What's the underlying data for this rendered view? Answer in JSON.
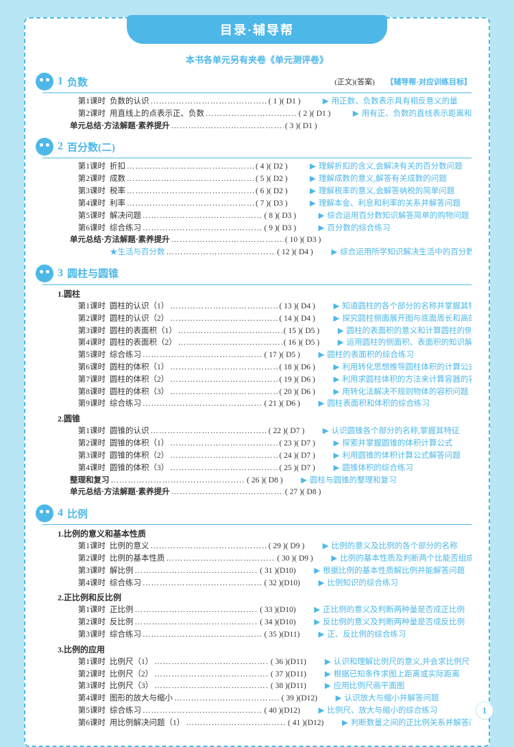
{
  "title": "目录·辅导帮",
  "subtitle": "本书各单元另有夹卷《单元测评卷》",
  "col_left": "(正文)(答案)",
  "col_right": "【辅导帮·对应训练目标】",
  "page_num": "1",
  "chapters": [
    {
      "num": "1",
      "title": "负数",
      "rows": [
        {
          "lesson": "第1课时",
          "topic": "负数的认识",
          "pg": "( 1 )( D1 )",
          "goal": "用正数、负数表示具有相反意义的量"
        },
        {
          "lesson": "第2课时",
          "topic": "用直线上的点表示正、负数",
          "pg": "( 2 )( D1 )",
          "goal": "用有正、负数的直线表示距离和相反的方向"
        },
        {
          "summary": true,
          "topic": "单元总结·方法解题·素养提升",
          "pg": "( 3 )( D1 )"
        }
      ]
    },
    {
      "num": "2",
      "title": "百分数(二)",
      "rows": [
        {
          "lesson": "第1课时",
          "topic": "折扣",
          "pg": "( 4 )( D2 )",
          "goal": "理解折扣的含义,会解决有关的百分数问题"
        },
        {
          "lesson": "第2课时",
          "topic": "成数",
          "pg": "( 5 )( D2 )",
          "goal": "理解成数的意义,解答有关成数的问题"
        },
        {
          "lesson": "第3课时",
          "topic": "税率",
          "pg": "( 6 )( D2 )",
          "goal": "理解税率的意义,会解答纳税的简单问题"
        },
        {
          "lesson": "第4课时",
          "topic": "利率",
          "pg": "( 7 )( D3 )",
          "goal": "理解本金、利息和利率的关系并解答问题"
        },
        {
          "lesson": "第5课时",
          "topic": "解决问题",
          "pg": "( 8 )( D3 )",
          "goal": "综合运用百分数知识解答简单的购物问题"
        },
        {
          "lesson": "第6课时",
          "topic": "综合练习",
          "pg": "( 9 )( D3 )",
          "goal": "百分数的综合练习"
        },
        {
          "summary": true,
          "topic": "单元总结·方法解题·素养提升",
          "pg": "( 10 )( D3 )"
        },
        {
          "star": true,
          "lesson": "",
          "topic": "★生活与百分数",
          "pg": "( 12 )( D4 )",
          "goal": "综合运用所学知识解决生活中的百分数问题"
        }
      ]
    },
    {
      "num": "3",
      "title": "圆柱与圆锥",
      "subs": [
        {
          "title": "1.圆柱",
          "rows": [
            {
              "lesson": "第1课时",
              "topic": "圆柱的认识（1）",
              "pg": "( 13 )( D4 )",
              "goal": "知道圆柱的各个部分的名称并掌握其特征"
            },
            {
              "lesson": "第2课时",
              "topic": "圆柱的认识（2）",
              "pg": "( 14 )( D4 )",
              "goal": "探究圆柱侧面展开图与底面周长和高的关系"
            },
            {
              "lesson": "第3课时",
              "topic": "圆柱的表面积（1）",
              "pg": "( 15 )( D5 )",
              "goal": "圆柱的表面积的意义和计算圆柱的侧面积"
            },
            {
              "lesson": "第4课时",
              "topic": "圆柱的表面积（2）",
              "pg": "( 16 )( D5 )",
              "goal": "运用圆柱的侧面积、表面积的知识解答问题"
            },
            {
              "lesson": "第5课时",
              "topic": "综合练习",
              "pg": "( 17 )( D5 )",
              "goal": "圆柱的表面积的综合练习"
            },
            {
              "lesson": "第6课时",
              "topic": "圆柱的体积（1）",
              "pg": "( 18 )( D6 )",
              "goal": "利用转化思想推导圆柱体积的计算公式"
            },
            {
              "lesson": "第7课时",
              "topic": "圆柱的体积（2）",
              "pg": "( 19 )( D6 )",
              "goal": "利用求圆柱体积的方法来计算容器的容积"
            },
            {
              "lesson": "第8课时",
              "topic": "圆柱的体积（3）",
              "pg": "( 20 )( D6 )",
              "goal": "用转化法解决不规则物体的容积问题"
            },
            {
              "lesson": "第9课时",
              "topic": "综合练习",
              "pg": "( 21 )( D6 )",
              "goal": "圆柱表面积和体积的综合练习"
            }
          ]
        },
        {
          "title": "2.圆锥",
          "rows": [
            {
              "lesson": "第1课时",
              "topic": "圆锥的认识",
              "pg": "( 22 )( D7 )",
              "goal": "认识圆锥各个部分的名称,掌握其特征"
            },
            {
              "lesson": "第2课时",
              "topic": "圆锥的体积（1）",
              "pg": "( 23 )( D7 )",
              "goal": "探索并掌握圆锥的体积计算公式"
            },
            {
              "lesson": "第3课时",
              "topic": "圆锥的体积（2）",
              "pg": "( 24 )( D7 )",
              "goal": "利用圆锥的体积计算公式解答问题"
            },
            {
              "lesson": "第4课时",
              "topic": "圆锥的体积（3）",
              "pg": "( 25 )( D7 )",
              "goal": "圆锥体积的综合练习"
            },
            {
              "summary": true,
              "topic": "整理和复习",
              "pg": "( 26 )( D8 )",
              "goal": "圆柱与圆锥的整理和复习"
            },
            {
              "summary": true,
              "topic": "单元总结·方法解题·素养提升",
              "pg": "( 27 )( D8 )"
            }
          ]
        }
      ]
    },
    {
      "num": "4",
      "title": "比例",
      "subs": [
        {
          "title": "1.比例的意义和基本性质",
          "rows": [
            {
              "lesson": "第1课时",
              "topic": "比例的意义",
              "pg": "( 29 )( D9 )",
              "goal": "比例的意义及比例的各个部分的名称"
            },
            {
              "lesson": "第2课时",
              "topic": "比例的基本性质",
              "pg": "( 30 )( D9 )",
              "goal": "比例的基本性质及判断两个比能否组成比例"
            },
            {
              "lesson": "第3课时",
              "topic": "解比例",
              "pg": "( 31 )(D10)",
              "goal": "根据比例的基本性质解比例并能解答问题"
            },
            {
              "lesson": "第4课时",
              "topic": "综合练习",
              "pg": "( 32 )(D10)",
              "goal": "比例知识的综合练习"
            }
          ]
        },
        {
          "title": "2.正比例和反比例",
          "rows": [
            {
              "lesson": "第1课时",
              "topic": "正比例",
              "pg": "( 33 )(D10)",
              "goal": "正比例的意义及判断两种量是否成正比例"
            },
            {
              "lesson": "第2课时",
              "topic": "反比例",
              "pg": "( 34 )(D10)",
              "goal": "反比例的意义及判断两种量是否成反比例"
            },
            {
              "lesson": "第3课时",
              "topic": "综合练习",
              "pg": "( 35 )(D11)",
              "goal": "正、反比例的综合练习"
            }
          ]
        },
        {
          "title": "3.比例的应用",
          "rows": [
            {
              "lesson": "第1课时",
              "topic": "比例尺（1）",
              "pg": "( 36 )(D11)",
              "goal": "认识和理解比例尺的意义,并会求比例尺"
            },
            {
              "lesson": "第2课时",
              "topic": "比例尺（2）",
              "pg": "( 37 )(D11)",
              "goal": "根据已知条件求图上距离或实际距离"
            },
            {
              "lesson": "第3课时",
              "topic": "比例尺（3）",
              "pg": "( 38 )(D11)",
              "goal": "应用比例尺画平面图"
            },
            {
              "lesson": "第4课时",
              "topic": "图形的放大与缩小",
              "pg": "( 39 )(D12)",
              "goal": "认识放大与缩小并解答问题"
            },
            {
              "lesson": "第5课时",
              "topic": "综合练习",
              "pg": "( 40 )(D12)",
              "goal": "比例尺、放大与缩小的综合练习"
            },
            {
              "lesson": "第6课时",
              "topic": "用比例解决问题（1）",
              "pg": "( 41 )(D12)",
              "goal": "判断数量之间的正比例关系并解答问题"
            }
          ]
        }
      ]
    }
  ]
}
